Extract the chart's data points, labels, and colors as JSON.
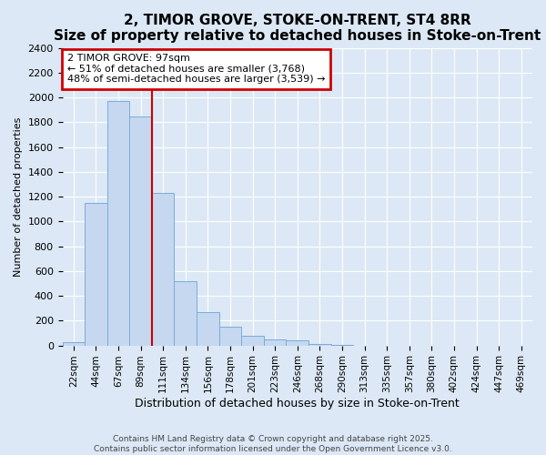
{
  "title1": "2, TIMOR GROVE, STOKE-ON-TRENT, ST4 8RR",
  "title2": "Size of property relative to detached houses in Stoke-on-Trent",
  "xlabel": "Distribution of detached houses by size in Stoke-on-Trent",
  "ylabel": "Number of detached properties",
  "categories": [
    "22sqm",
    "44sqm",
    "67sqm",
    "89sqm",
    "111sqm",
    "134sqm",
    "156sqm",
    "178sqm",
    "201sqm",
    "223sqm",
    "246sqm",
    "268sqm",
    "290sqm",
    "313sqm",
    "335sqm",
    "357sqm",
    "380sqm",
    "402sqm",
    "424sqm",
    "447sqm",
    "469sqm"
  ],
  "values": [
    30,
    1150,
    1970,
    1850,
    1230,
    520,
    270,
    150,
    80,
    50,
    40,
    15,
    5,
    0,
    0,
    0,
    0,
    0,
    0,
    0,
    0
  ],
  "bar_color": "#c5d8f0",
  "bar_edge_color": "#7aabda",
  "annotation_title": "2 TIMOR GROVE: 97sqm",
  "annotation_line1": "← 51% of detached houses are smaller (3,768)",
  "annotation_line2": "48% of semi-detached houses are larger (3,539) →",
  "annotation_box_color": "#ffffff",
  "annotation_box_edge": "#cc0000",
  "vline_color": "#cc0000",
  "vline_x": 3.5,
  "ylim": [
    0,
    2400
  ],
  "yticks": [
    0,
    200,
    400,
    600,
    800,
    1000,
    1200,
    1400,
    1600,
    1800,
    2000,
    2200,
    2400
  ],
  "footer1": "Contains HM Land Registry data © Crown copyright and database right 2025.",
  "footer2": "Contains public sector information licensed under the Open Government Licence v3.0.",
  "bg_color": "#dce8f5",
  "grid_color": "#ffffff",
  "title_fontsize": 11,
  "subtitle_fontsize": 9
}
